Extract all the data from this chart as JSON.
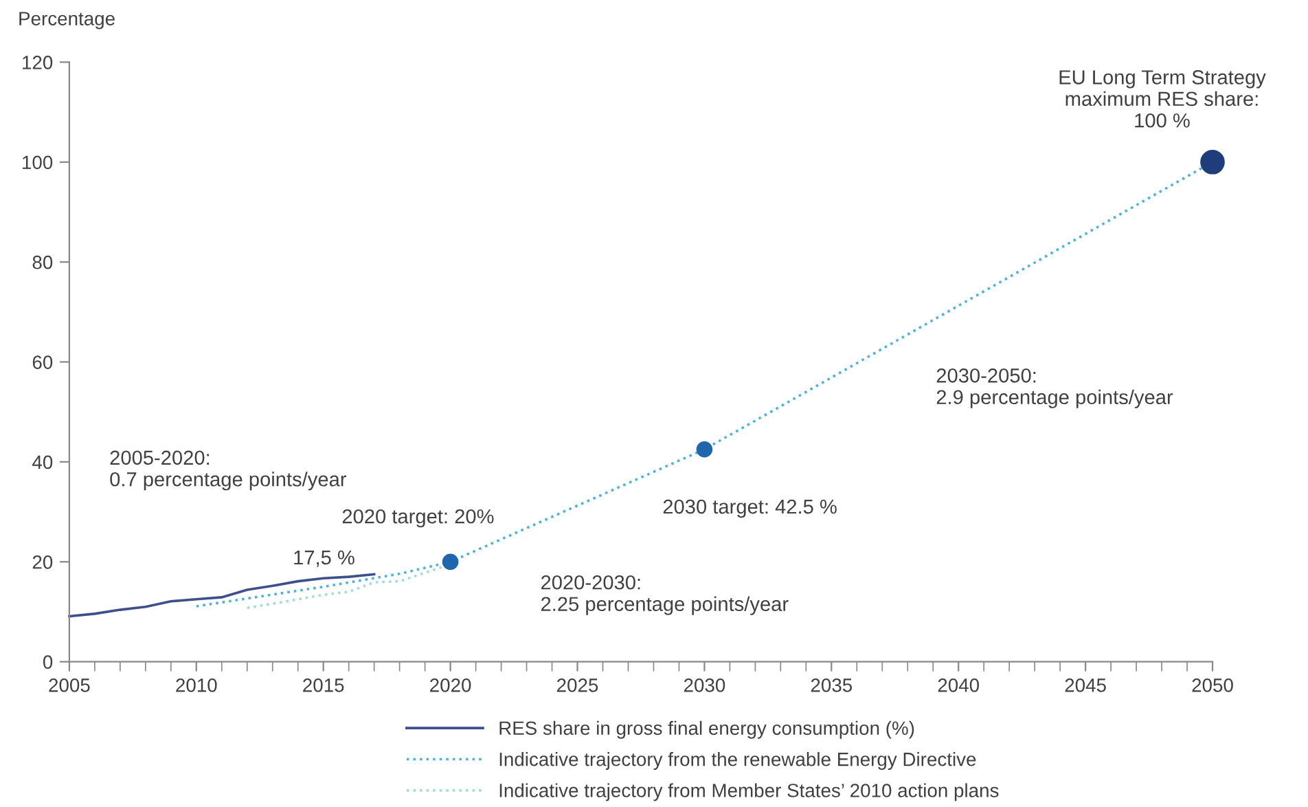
{
  "chart_data": {
    "type": "line",
    "ylabel": "Percentage",
    "xlim": [
      2005,
      2050
    ],
    "ylim": [
      0,
      120
    ],
    "xticks": [
      2005,
      2010,
      2015,
      2020,
      2025,
      2030,
      2035,
      2040,
      2045,
      2050
    ],
    "yticks": [
      0,
      20,
      40,
      60,
      80,
      100,
      120
    ],
    "grid": false,
    "legend": "bottom",
    "series": [
      {
        "name": "RES share in gross final energy consumption (%)",
        "color": "#3d4f8c",
        "line_style": "solid",
        "x": [
          2005,
          2006,
          2007,
          2008,
          2009,
          2010,
          2011,
          2012,
          2013,
          2014,
          2015,
          2016,
          2017
        ],
        "values": [
          9.1,
          9.6,
          10.4,
          11.0,
          12.1,
          12.5,
          12.9,
          14.4,
          15.2,
          16.1,
          16.7,
          17.0,
          17.5
        ]
      },
      {
        "name": "Indicative trajectory from the renewable Energy Directive",
        "color": "#4fb3d9",
        "line_style": "dotted",
        "x": [
          2010,
          2015,
          2018,
          2020,
          2030,
          2050
        ],
        "values": [
          11.1,
          15.0,
          17.6,
          20,
          42.5,
          100
        ]
      },
      {
        "name": "Indicative trajectory from Member States’ 2010 action plans",
        "color": "#a6dcd8",
        "line_style": "dotted",
        "x": [
          2012,
          2013,
          2014,
          2015,
          2016,
          2017,
          2018,
          2020
        ],
        "values": [
          10.8,
          11.6,
          12.5,
          13.4,
          14.0,
          15.9,
          16.1,
          19.5
        ]
      },
      {
        "type": "bubble",
        "x": [
          2020,
          2030,
          2050
        ],
        "values": [
          20,
          42.5,
          100
        ],
        "sizes": [
          0.4,
          0.4,
          1
        ],
        "colors": [
          "#2166ac",
          "#2166ac",
          "#1f3d7a"
        ]
      }
    ],
    "annotations": [
      {
        "text": "EU Long Term Strategy\nmaximum RES share:\n100 %",
        "x": 2050,
        "y": 100
      },
      "2030-2050:\n2.9 percentage points/year",
      {
        "text": "2030 target: 42.5 %",
        "x": 2030,
        "y": 42.5
      },
      "2020-2030:\n2.25 percentage points/year",
      {
        "text": "2020 target: 20%",
        "x": 2020,
        "y": 20
      },
      {
        "text": "17,5 %",
        "x": 2017,
        "y": 17.5
      },
      "2005-2020:\n0.7 percentage points/year"
    ]
  }
}
